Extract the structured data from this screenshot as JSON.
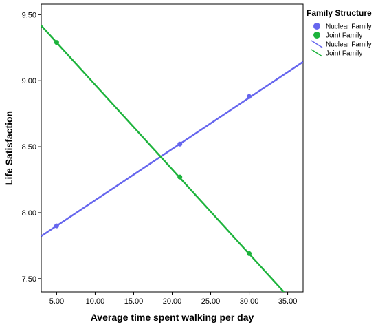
{
  "chart_data": {
    "type": "scatter",
    "xlabel": "Average time spent walking per day",
    "ylabel": "Life Satisfaction",
    "xlim": [
      3.0,
      37.0
    ],
    "ylim": [
      7.4,
      9.58
    ],
    "xticks": [
      "5.00",
      "10.00",
      "15.00",
      "20.00",
      "25.00",
      "30.00",
      "35.00"
    ],
    "xtick_values": [
      5,
      10,
      15,
      20,
      25,
      30,
      35
    ],
    "yticks": [
      "7.50",
      "8.00",
      "8.50",
      "9.00",
      "9.50"
    ],
    "ytick_values": [
      7.5,
      8.0,
      8.5,
      9.0,
      9.5
    ],
    "grid": false,
    "legend": {
      "title": "Family Structure",
      "position": "top-right-outside",
      "entries": [
        {
          "label": "Nuclear Family",
          "kind": "marker",
          "series": 0
        },
        {
          "label": "Joint Family",
          "kind": "marker",
          "series": 1
        },
        {
          "label": "Nuclear Family",
          "kind": "line",
          "series": 0
        },
        {
          "label": "Joint Family",
          "kind": "line",
          "series": 1
        }
      ]
    },
    "series": [
      {
        "name": "Nuclear Family",
        "color": "#6666ee",
        "points": [
          [
            5.0,
            7.9
          ],
          [
            21.0,
            8.52
          ],
          [
            30.0,
            8.88
          ]
        ],
        "fit_line": {
          "slope": 0.03883,
          "intercept": 7.706
        }
      },
      {
        "name": "Joint Family",
        "color": "#1db33c",
        "points": [
          [
            5.0,
            9.29
          ],
          [
            21.0,
            8.27
          ],
          [
            30.0,
            7.69
          ]
        ],
        "fit_line": {
          "slope": -0.06403,
          "intercept": 9.609
        }
      }
    ]
  }
}
